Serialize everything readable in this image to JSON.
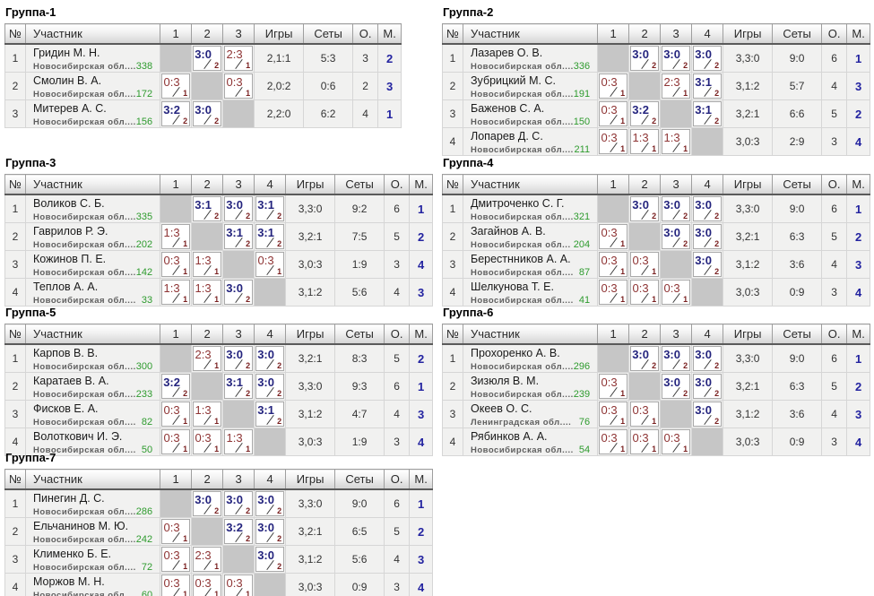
{
  "colors": {
    "win_score": "#24247E",
    "loss_score": "#8E3434",
    "match_points": "#791F1F",
    "rating_green": "#2E9B2E",
    "place_navy": "#2323A0",
    "self_cell_gray": "#C6C6C6"
  },
  "table_headers": {
    "number": "№",
    "participant": "Участник",
    "games": "Игры",
    "sets": "Сеты",
    "points": "О.",
    "place": "М."
  },
  "groups": [
    {
      "title": "Группа-1",
      "matrix_cols": [
        "1",
        "2",
        "3"
      ],
      "players": [
        {
          "num": "1",
          "name": "Гридин М. Н.",
          "region": "Новосибирская обл....",
          "rating": "338",
          "results": [
            null,
            {
              "score": "3:0",
              "won": true,
              "pts": "2"
            },
            {
              "score": "2:3",
              "won": false,
              "pts": "1"
            }
          ],
          "games": "2,1:1",
          "sets": "5:3",
          "points": "3",
          "place": "2"
        },
        {
          "num": "2",
          "name": "Смолин В. А.",
          "region": "Новосибирская обл....",
          "rating": "172",
          "results": [
            {
              "score": "0:3",
              "won": false,
              "pts": "1"
            },
            null,
            {
              "score": "0:3",
              "won": false,
              "pts": "1"
            }
          ],
          "games": "2,0:2",
          "sets": "0:6",
          "points": "2",
          "place": "3"
        },
        {
          "num": "3",
          "name": "Митерев А. С.",
          "region": "Новосибирская обл....",
          "rating": "156",
          "results": [
            {
              "score": "3:2",
              "won": true,
              "pts": "2"
            },
            {
              "score": "3:0",
              "won": true,
              "pts": "2"
            },
            null
          ],
          "games": "2,2:0",
          "sets": "6:2",
          "points": "4",
          "place": "1"
        }
      ]
    },
    {
      "title": "Группа-2",
      "matrix_cols": [
        "1",
        "2",
        "3",
        "4"
      ],
      "players": [
        {
          "num": "1",
          "name": "Лазарев О. В.",
          "region": "Новосибирская обл....",
          "rating": "336",
          "results": [
            null,
            {
              "score": "3:0",
              "won": true,
              "pts": "2"
            },
            {
              "score": "3:0",
              "won": true,
              "pts": "2"
            },
            {
              "score": "3:0",
              "won": true,
              "pts": "2"
            }
          ],
          "games": "3,3:0",
          "sets": "9:0",
          "points": "6",
          "place": "1"
        },
        {
          "num": "2",
          "name": "Зубрицкий М. С.",
          "region": "Новосибирская обл....",
          "rating": "191",
          "results": [
            {
              "score": "0:3",
              "won": false,
              "pts": "1"
            },
            null,
            {
              "score": "2:3",
              "won": false,
              "pts": "1"
            },
            {
              "score": "3:1",
              "won": true,
              "pts": "2"
            }
          ],
          "games": "3,1:2",
          "sets": "5:7",
          "points": "4",
          "place": "3"
        },
        {
          "num": "3",
          "name": "Баженов С. А.",
          "region": "Новосибирская обл....",
          "rating": "150",
          "results": [
            {
              "score": "0:3",
              "won": false,
              "pts": "1"
            },
            {
              "score": "3:2",
              "won": true,
              "pts": "2"
            },
            null,
            {
              "score": "3:1",
              "won": true,
              "pts": "2"
            }
          ],
          "games": "3,2:1",
          "sets": "6:6",
          "points": "5",
          "place": "2"
        },
        {
          "num": "4",
          "name": "Лопарев Д. С.",
          "region": "Новосибирская обл....",
          "rating": "211",
          "results": [
            {
              "score": "0:3",
              "won": false,
              "pts": "1"
            },
            {
              "score": "1:3",
              "won": false,
              "pts": "1"
            },
            {
              "score": "1:3",
              "won": false,
              "pts": "1"
            },
            null
          ],
          "games": "3,0:3",
          "sets": "2:9",
          "points": "3",
          "place": "4"
        }
      ]
    },
    {
      "title": "Группа-3",
      "matrix_cols": [
        "1",
        "2",
        "3",
        "4"
      ],
      "players": [
        {
          "num": "1",
          "name": "Воликов С. Б.",
          "region": "Новосибирская обл....",
          "rating": "335",
          "results": [
            null,
            {
              "score": "3:1",
              "won": true,
              "pts": "2"
            },
            {
              "score": "3:0",
              "won": true,
              "pts": "2"
            },
            {
              "score": "3:1",
              "won": true,
              "pts": "2"
            }
          ],
          "games": "3,3:0",
          "sets": "9:2",
          "points": "6",
          "place": "1"
        },
        {
          "num": "2",
          "name": "Гаврилов Р. Э.",
          "region": "Новосибирская обл....",
          "rating": "202",
          "results": [
            {
              "score": "1:3",
              "won": false,
              "pts": "1"
            },
            null,
            {
              "score": "3:1",
              "won": true,
              "pts": "2"
            },
            {
              "score": "3:1",
              "won": true,
              "pts": "2"
            }
          ],
          "games": "3,2:1",
          "sets": "7:5",
          "points": "5",
          "place": "2"
        },
        {
          "num": "3",
          "name": "Кожинов П. Е.",
          "region": "Новосибирская обл....",
          "rating": "142",
          "results": [
            {
              "score": "0:3",
              "won": false,
              "pts": "1"
            },
            {
              "score": "1:3",
              "won": false,
              "pts": "1"
            },
            null,
            {
              "score": "0:3",
              "won": false,
              "pts": "1"
            }
          ],
          "games": "3,0:3",
          "sets": "1:9",
          "points": "3",
          "place": "4"
        },
        {
          "num": "4",
          "name": "Теплов А. А.",
          "region": "Новосибирская обл....",
          "rating": "33",
          "results": [
            {
              "score": "1:3",
              "won": false,
              "pts": "1"
            },
            {
              "score": "1:3",
              "won": false,
              "pts": "1"
            },
            {
              "score": "3:0",
              "won": true,
              "pts": "2"
            },
            null
          ],
          "games": "3,1:2",
          "sets": "5:6",
          "points": "4",
          "place": "3"
        }
      ]
    },
    {
      "title": "Группа-4",
      "matrix_cols": [
        "1",
        "2",
        "3",
        "4"
      ],
      "players": [
        {
          "num": "1",
          "name": "Дмитроченко С. Г.",
          "region": "Новосибирская обл....",
          "rating": "321",
          "results": [
            null,
            {
              "score": "3:0",
              "won": true,
              "pts": "2"
            },
            {
              "score": "3:0",
              "won": true,
              "pts": "2"
            },
            {
              "score": "3:0",
              "won": true,
              "pts": "2"
            }
          ],
          "games": "3,3:0",
          "sets": "9:0",
          "points": "6",
          "place": "1"
        },
        {
          "num": "2",
          "name": "Загайнов А. В.",
          "region": "Новосибирская обл...",
          "rating": "204",
          "results": [
            {
              "score": "0:3",
              "won": false,
              "pts": "1"
            },
            null,
            {
              "score": "3:0",
              "won": true,
              "pts": "2"
            },
            {
              "score": "3:0",
              "won": true,
              "pts": "2"
            }
          ],
          "games": "3,2:1",
          "sets": "6:3",
          "points": "5",
          "place": "2"
        },
        {
          "num": "3",
          "name": "Берестнников А. А.",
          "region": "Новосибирская обл....",
          "rating": "87",
          "results": [
            {
              "score": "0:3",
              "won": false,
              "pts": "1"
            },
            {
              "score": "0:3",
              "won": false,
              "pts": "1"
            },
            null,
            {
              "score": "3:0",
              "won": true,
              "pts": "2"
            }
          ],
          "games": "3,1:2",
          "sets": "3:6",
          "points": "4",
          "place": "3"
        },
        {
          "num": "4",
          "name": "Шелкунова Т. Е.",
          "region": "Новосибирская обл....",
          "rating": "41",
          "results": [
            {
              "score": "0:3",
              "won": false,
              "pts": "1"
            },
            {
              "score": "0:3",
              "won": false,
              "pts": "1"
            },
            {
              "score": "0:3",
              "won": false,
              "pts": "1"
            },
            null
          ],
          "games": "3,0:3",
          "sets": "0:9",
          "points": "3",
          "place": "4"
        }
      ]
    },
    {
      "title": "Группа-5",
      "matrix_cols": [
        "1",
        "2",
        "3",
        "4"
      ],
      "players": [
        {
          "num": "1",
          "name": "Карпов В. В.",
          "region": "Новосибирская обл....",
          "rating": "300",
          "results": [
            null,
            {
              "score": "2:3",
              "won": false,
              "pts": "1"
            },
            {
              "score": "3:0",
              "won": true,
              "pts": "2"
            },
            {
              "score": "3:0",
              "won": true,
              "pts": "2"
            }
          ],
          "games": "3,2:1",
          "sets": "8:3",
          "points": "5",
          "place": "2"
        },
        {
          "num": "2",
          "name": "Каратаев В. А.",
          "region": "Новосибирская обл....",
          "rating": "233",
          "results": [
            {
              "score": "3:2",
              "won": true,
              "pts": "2"
            },
            null,
            {
              "score": "3:1",
              "won": true,
              "pts": "2"
            },
            {
              "score": "3:0",
              "won": true,
              "pts": "2"
            }
          ],
          "games": "3,3:0",
          "sets": "9:3",
          "points": "6",
          "place": "1"
        },
        {
          "num": "3",
          "name": "Фисков Е. А.",
          "region": "Новосибирская обл....",
          "rating": "82",
          "results": [
            {
              "score": "0:3",
              "won": false,
              "pts": "1"
            },
            {
              "score": "1:3",
              "won": false,
              "pts": "1"
            },
            null,
            {
              "score": "3:1",
              "won": true,
              "pts": "2"
            }
          ],
          "games": "3,1:2",
          "sets": "4:7",
          "points": "4",
          "place": "3"
        },
        {
          "num": "4",
          "name": "Волоткович И. Э.",
          "region": "Новосибирская обл....",
          "rating": "50",
          "results": [
            {
              "score": "0:3",
              "won": false,
              "pts": "1"
            },
            {
              "score": "0:3",
              "won": false,
              "pts": "1"
            },
            {
              "score": "1:3",
              "won": false,
              "pts": "1"
            },
            null
          ],
          "games": "3,0:3",
          "sets": "1:9",
          "points": "3",
          "place": "4"
        }
      ]
    },
    {
      "title": "Группа-6",
      "matrix_cols": [
        "1",
        "2",
        "3",
        "4"
      ],
      "players": [
        {
          "num": "1",
          "name": "Прохоренко А. В.",
          "region": "Новосибирская обл....",
          "rating": "296",
          "results": [
            null,
            {
              "score": "3:0",
              "won": true,
              "pts": "2"
            },
            {
              "score": "3:0",
              "won": true,
              "pts": "2"
            },
            {
              "score": "3:0",
              "won": true,
              "pts": "2"
            }
          ],
          "games": "3,3:0",
          "sets": "9:0",
          "points": "6",
          "place": "1"
        },
        {
          "num": "2",
          "name": "Зизюля В. М.",
          "region": "Новосибирская обл....",
          "rating": "239",
          "results": [
            {
              "score": "0:3",
              "won": false,
              "pts": "1"
            },
            null,
            {
              "score": "3:0",
              "won": true,
              "pts": "2"
            },
            {
              "score": "3:0",
              "won": true,
              "pts": "2"
            }
          ],
          "games": "3,2:1",
          "sets": "6:3",
          "points": "5",
          "place": "2"
        },
        {
          "num": "3",
          "name": "Океев О. С.",
          "region": "Ленинградская обл....",
          "rating": "76",
          "results": [
            {
              "score": "0:3",
              "won": false,
              "pts": "1"
            },
            {
              "score": "0:3",
              "won": false,
              "pts": "1"
            },
            null,
            {
              "score": "3:0",
              "won": true,
              "pts": "2"
            }
          ],
          "games": "3,1:2",
          "sets": "3:6",
          "points": "4",
          "place": "3"
        },
        {
          "num": "4",
          "name": "Рябинков А. А.",
          "region": "Новосибирская обл....",
          "rating": "54",
          "results": [
            {
              "score": "0:3",
              "won": false,
              "pts": "1"
            },
            {
              "score": "0:3",
              "won": false,
              "pts": "1"
            },
            {
              "score": "0:3",
              "won": false,
              "pts": "1"
            },
            null
          ],
          "games": "3,0:3",
          "sets": "0:9",
          "points": "3",
          "place": "4"
        }
      ]
    },
    {
      "title": "Группа-7",
      "matrix_cols": [
        "1",
        "2",
        "3",
        "4"
      ],
      "players": [
        {
          "num": "1",
          "name": "Пинегин Д. С.",
          "region": "Новосибирская обл....",
          "rating": "286",
          "results": [
            null,
            {
              "score": "3:0",
              "won": true,
              "pts": "2"
            },
            {
              "score": "3:0",
              "won": true,
              "pts": "2"
            },
            {
              "score": "3:0",
              "won": true,
              "pts": "2"
            }
          ],
          "games": "3,3:0",
          "sets": "9:0",
          "points": "6",
          "place": "1"
        },
        {
          "num": "2",
          "name": "Ельчанинов М. Ю.",
          "region": "Новосибирская обл....",
          "rating": "242",
          "results": [
            {
              "score": "0:3",
              "won": false,
              "pts": "1"
            },
            null,
            {
              "score": "3:2",
              "won": true,
              "pts": "2"
            },
            {
              "score": "3:0",
              "won": true,
              "pts": "2"
            }
          ],
          "games": "3,2:1",
          "sets": "6:5",
          "points": "5",
          "place": "2"
        },
        {
          "num": "3",
          "name": "Клименко Б. Е.",
          "region": "Новосибирская обл....",
          "rating": "72",
          "results": [
            {
              "score": "0:3",
              "won": false,
              "pts": "1"
            },
            {
              "score": "2:3",
              "won": false,
              "pts": "1"
            },
            null,
            {
              "score": "3:0",
              "won": true,
              "pts": "2"
            }
          ],
          "games": "3,1:2",
          "sets": "5:6",
          "points": "4",
          "place": "3"
        },
        {
          "num": "4",
          "name": "Моржов М. Н.",
          "region": "Новосибирская обл....",
          "rating": "60",
          "results": [
            {
              "score": "0:3",
              "won": false,
              "pts": "1"
            },
            {
              "score": "0:3",
              "won": false,
              "pts": "1"
            },
            {
              "score": "0:3",
              "won": false,
              "pts": "1"
            },
            null
          ],
          "games": "3,0:3",
          "sets": "0:9",
          "points": "3",
          "place": "4"
        }
      ]
    }
  ]
}
